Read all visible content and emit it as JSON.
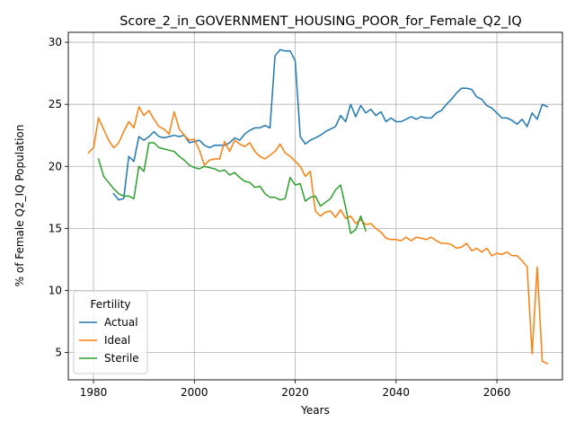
{
  "chart_data": {
    "type": "line",
    "title": "Score_2_in_GOVERNMENT_HOUSING_POOR_for_Female_Q2_IQ",
    "xlabel": "Years",
    "ylabel": "% of Female Q2_IQ Population",
    "xlim": [
      1975,
      2073
    ],
    "ylim": [
      2.8,
      30.8
    ],
    "xticks": [
      1980,
      2000,
      2020,
      2040,
      2060
    ],
    "yticks": [
      5,
      10,
      15,
      20,
      25,
      30
    ],
    "grid": true,
    "legend": {
      "title": "Fertility",
      "placement": "lower-left"
    },
    "series": [
      {
        "name": "Actual",
        "color": "#1f77b4",
        "points": [
          [
            1984,
            17.8
          ],
          [
            1985,
            17.3
          ],
          [
            1986,
            17.4
          ],
          [
            1987,
            20.8
          ],
          [
            1988,
            20.4
          ],
          [
            1989,
            22.4
          ],
          [
            1990,
            22.1
          ],
          [
            1991,
            22.4
          ],
          [
            1992,
            22.8
          ],
          [
            1993,
            22.4
          ],
          [
            1994,
            22.3
          ],
          [
            1995,
            22.4
          ],
          [
            1996,
            22.5
          ],
          [
            1997,
            22.4
          ],
          [
            1998,
            22.5
          ],
          [
            1999,
            21.9
          ],
          [
            2000,
            22.0
          ],
          [
            2001,
            22.1
          ],
          [
            2002,
            21.7
          ],
          [
            2003,
            21.5
          ],
          [
            2004,
            21.7
          ],
          [
            2005,
            21.7
          ],
          [
            2006,
            21.7
          ],
          [
            2007,
            21.9
          ],
          [
            2008,
            22.3
          ],
          [
            2009,
            22.1
          ],
          [
            2010,
            22.6
          ],
          [
            2011,
            22.9
          ],
          [
            2012,
            23.1
          ],
          [
            2013,
            23.1
          ],
          [
            2014,
            23.3
          ],
          [
            2015,
            23.1
          ],
          [
            2016,
            28.9
          ],
          [
            2017,
            29.4
          ],
          [
            2018,
            29.3
          ],
          [
            2019,
            29.3
          ],
          [
            2020,
            28.5
          ],
          [
            2021,
            22.4
          ],
          [
            2022,
            21.8
          ],
          [
            2023,
            22.1
          ],
          [
            2024,
            22.3
          ],
          [
            2025,
            22.5
          ],
          [
            2026,
            22.8
          ],
          [
            2027,
            23.0
          ],
          [
            2028,
            23.2
          ],
          [
            2029,
            24.1
          ],
          [
            2030,
            23.6
          ],
          [
            2031,
            25.0
          ],
          [
            2032,
            24.0
          ],
          [
            2033,
            24.9
          ],
          [
            2034,
            24.3
          ],
          [
            2035,
            24.6
          ],
          [
            2036,
            24.1
          ],
          [
            2037,
            24.4
          ],
          [
            2038,
            23.6
          ],
          [
            2039,
            23.9
          ],
          [
            2040,
            23.6
          ],
          [
            2041,
            23.6
          ],
          [
            2042,
            23.8
          ],
          [
            2043,
            24.0
          ],
          [
            2044,
            23.8
          ],
          [
            2045,
            24.0
          ],
          [
            2046,
            23.9
          ],
          [
            2047,
            23.9
          ],
          [
            2048,
            24.3
          ],
          [
            2049,
            24.5
          ],
          [
            2050,
            25.0
          ],
          [
            2051,
            25.4
          ],
          [
            2052,
            25.9
          ],
          [
            2053,
            26.3
          ],
          [
            2054,
            26.3
          ],
          [
            2055,
            26.2
          ],
          [
            2056,
            25.6
          ],
          [
            2057,
            25.4
          ],
          [
            2058,
            24.9
          ],
          [
            2059,
            24.7
          ],
          [
            2060,
            24.3
          ],
          [
            2061,
            23.9
          ],
          [
            2062,
            23.9
          ],
          [
            2063,
            23.7
          ],
          [
            2064,
            23.4
          ],
          [
            2065,
            23.8
          ],
          [
            2066,
            23.2
          ],
          [
            2067,
            24.3
          ],
          [
            2068,
            23.8
          ],
          [
            2069,
            25.0
          ],
          [
            2070,
            24.8
          ]
        ]
      },
      {
        "name": "Ideal",
        "color": "#ff7f0e",
        "points": [
          [
            1979,
            21.1
          ],
          [
            1980,
            21.5
          ],
          [
            1981,
            23.9
          ],
          [
            1982,
            23.0
          ],
          [
            1983,
            22.1
          ],
          [
            1984,
            21.5
          ],
          [
            1985,
            21.9
          ],
          [
            1986,
            22.8
          ],
          [
            1987,
            23.6
          ],
          [
            1988,
            23.1
          ],
          [
            1989,
            24.8
          ],
          [
            1990,
            24.1
          ],
          [
            1991,
            24.5
          ],
          [
            1992,
            23.8
          ],
          [
            1993,
            23.2
          ],
          [
            1994,
            23.0
          ],
          [
            1995,
            22.6
          ],
          [
            1996,
            24.4
          ],
          [
            1997,
            23.0
          ],
          [
            1998,
            22.5
          ],
          [
            1999,
            22.1
          ],
          [
            2000,
            22.2
          ],
          [
            2001,
            21.3
          ],
          [
            2002,
            20.1
          ],
          [
            2003,
            20.5
          ],
          [
            2004,
            20.6
          ],
          [
            2005,
            20.6
          ],
          [
            2006,
            22.0
          ],
          [
            2007,
            21.2
          ],
          [
            2008,
            22.1
          ],
          [
            2009,
            21.8
          ],
          [
            2010,
            21.6
          ],
          [
            2011,
            21.9
          ],
          [
            2012,
            21.2
          ],
          [
            2013,
            20.8
          ],
          [
            2014,
            20.6
          ],
          [
            2015,
            20.9
          ],
          [
            2016,
            21.2
          ],
          [
            2017,
            21.8
          ],
          [
            2018,
            21.1
          ],
          [
            2019,
            20.8
          ],
          [
            2020,
            20.4
          ],
          [
            2021,
            20.0
          ],
          [
            2022,
            19.2
          ],
          [
            2023,
            19.6
          ],
          [
            2024,
            16.4
          ],
          [
            2025,
            16.0
          ],
          [
            2026,
            16.3
          ],
          [
            2027,
            16.4
          ],
          [
            2028,
            15.9
          ],
          [
            2029,
            16.5
          ],
          [
            2030,
            15.8
          ],
          [
            2031,
            16.0
          ],
          [
            2032,
            15.4
          ],
          [
            2033,
            15.7
          ],
          [
            2034,
            15.3
          ],
          [
            2035,
            15.4
          ],
          [
            2036,
            15.0
          ],
          [
            2037,
            14.7
          ],
          [
            2038,
            14.2
          ],
          [
            2039,
            14.1
          ],
          [
            2040,
            14.1
          ],
          [
            2041,
            14.0
          ],
          [
            2042,
            14.3
          ],
          [
            2043,
            14.0
          ],
          [
            2044,
            14.3
          ],
          [
            2045,
            14.2
          ],
          [
            2046,
            14.1
          ],
          [
            2047,
            14.3
          ],
          [
            2048,
            14.0
          ],
          [
            2049,
            13.8
          ],
          [
            2050,
            13.8
          ],
          [
            2051,
            13.7
          ],
          [
            2052,
            13.4
          ],
          [
            2053,
            13.5
          ],
          [
            2054,
            13.8
          ],
          [
            2055,
            13.2
          ],
          [
            2056,
            13.4
          ],
          [
            2057,
            13.1
          ],
          [
            2058,
            13.4
          ],
          [
            2059,
            12.8
          ],
          [
            2060,
            13.0
          ],
          [
            2061,
            12.9
          ],
          [
            2062,
            13.1
          ],
          [
            2063,
            12.8
          ],
          [
            2064,
            12.8
          ],
          [
            2065,
            12.4
          ],
          [
            2066,
            11.9
          ],
          [
            2067,
            4.9
          ],
          [
            2068,
            11.9
          ],
          [
            2069,
            4.3
          ],
          [
            2070,
            4.1
          ]
        ]
      },
      {
        "name": "Sterile",
        "color": "#2ca02c",
        "points": [
          [
            1981,
            20.6
          ],
          [
            1982,
            19.2
          ],
          [
            1983,
            18.7
          ],
          [
            1984,
            18.2
          ],
          [
            1985,
            17.8
          ],
          [
            1986,
            17.6
          ],
          [
            1987,
            17.6
          ],
          [
            1988,
            17.4
          ],
          [
            1989,
            20.0
          ],
          [
            1990,
            19.6
          ],
          [
            1991,
            21.9
          ],
          [
            1992,
            21.9
          ],
          [
            1993,
            21.5
          ],
          [
            1994,
            21.4
          ],
          [
            1995,
            21.3
          ],
          [
            1996,
            21.2
          ],
          [
            1997,
            20.8
          ],
          [
            1998,
            20.5
          ],
          [
            1999,
            20.1
          ],
          [
            2000,
            19.9
          ],
          [
            2001,
            19.8
          ],
          [
            2002,
            20.0
          ],
          [
            2003,
            19.9
          ],
          [
            2004,
            19.8
          ],
          [
            2005,
            19.6
          ],
          [
            2006,
            19.7
          ],
          [
            2007,
            19.3
          ],
          [
            2008,
            19.5
          ],
          [
            2009,
            19.1
          ],
          [
            2010,
            18.8
          ],
          [
            2011,
            18.7
          ],
          [
            2012,
            18.3
          ],
          [
            2013,
            18.4
          ],
          [
            2014,
            17.8
          ],
          [
            2015,
            17.5
          ],
          [
            2016,
            17.5
          ],
          [
            2017,
            17.3
          ],
          [
            2018,
            17.4
          ],
          [
            2019,
            19.1
          ],
          [
            2020,
            18.5
          ],
          [
            2021,
            18.6
          ],
          [
            2022,
            17.2
          ],
          [
            2023,
            17.5
          ],
          [
            2024,
            17.6
          ],
          [
            2025,
            16.8
          ],
          [
            2026,
            17.1
          ],
          [
            2027,
            17.4
          ],
          [
            2028,
            18.1
          ],
          [
            2029,
            18.5
          ],
          [
            2030,
            16.7
          ],
          [
            2031,
            14.6
          ],
          [
            2032,
            14.9
          ],
          [
            2033,
            16.0
          ],
          [
            2034,
            14.8
          ]
        ]
      }
    ]
  }
}
